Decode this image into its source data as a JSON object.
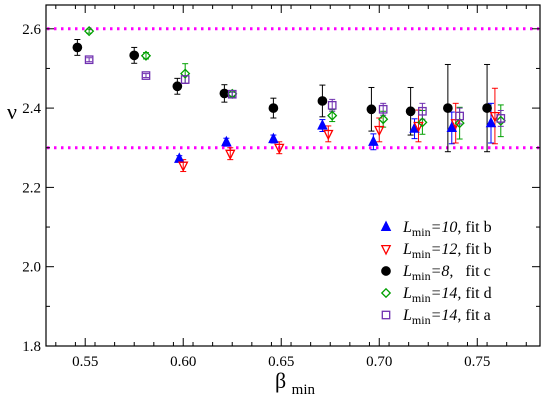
{
  "chart_data": {
    "type": "scatter",
    "xlabel": "β",
    "xlabel_sub": "min",
    "ylabel": "ν",
    "xlim": [
      0.53,
      0.782
    ],
    "ylim": [
      1.8,
      2.66
    ],
    "xticks": [
      0.55,
      0.6,
      0.65,
      0.7,
      0.75
    ],
    "xtick_labels": [
      "0.55",
      "0.60",
      "0.65",
      "0.70",
      "0.75"
    ],
    "yticks": [
      1.8,
      2.0,
      2.2,
      2.4,
      2.6
    ],
    "ytick_labels": [
      "1.8",
      "2.0",
      "2.2",
      "2.4",
      "2.6"
    ],
    "grid": false,
    "legend_position": "bottom-right",
    "reference_lines": [
      {
        "y": 2.6,
        "color": "#ff00ff",
        "style": "dotted"
      },
      {
        "y": 2.3,
        "color": "#ff00ff",
        "style": "dotted"
      }
    ],
    "series": [
      {
        "label_main": "L",
        "label_sub": "min",
        "label_value": "=10",
        "label_fit": ", fit b",
        "marker": "triangle-up",
        "color": "#0000ff",
        "filled": true,
        "points": [
          {
            "x": 0.598,
            "y": 2.272,
            "err": 0.008
          },
          {
            "x": 0.622,
            "y": 2.314,
            "err": 0.01
          },
          {
            "x": 0.646,
            "y": 2.322,
            "err": 0.01
          },
          {
            "x": 0.671,
            "y": 2.356,
            "err": 0.015
          },
          {
            "x": 0.697,
            "y": 2.315,
            "err": 0.02
          },
          {
            "x": 0.718,
            "y": 2.348,
            "err": 0.025
          },
          {
            "x": 0.737,
            "y": 2.35,
            "err": 0.04
          },
          {
            "x": 0.757,
            "y": 2.362,
            "err": 0.05
          }
        ]
      },
      {
        "label_main": "L",
        "label_sub": "min",
        "label_value": "=12",
        "label_fit": ", fit b",
        "marker": "triangle-down",
        "color": "#ff0000",
        "filled": false,
        "points": [
          {
            "x": 0.6,
            "y": 2.255,
            "err": 0.015
          },
          {
            "x": 0.624,
            "y": 2.285,
            "err": 0.015
          },
          {
            "x": 0.649,
            "y": 2.3,
            "err": 0.015
          },
          {
            "x": 0.674,
            "y": 2.335,
            "err": 0.02
          },
          {
            "x": 0.7,
            "y": 2.345,
            "err": 0.03
          },
          {
            "x": 0.72,
            "y": 2.355,
            "err": 0.04
          },
          {
            "x": 0.739,
            "y": 2.362,
            "err": 0.05
          },
          {
            "x": 0.759,
            "y": 2.38,
            "err": 0.07
          }
        ]
      },
      {
        "label_main": "L",
        "label_sub": "min",
        "label_value": "=8,",
        "label_fit": "   fit c",
        "marker": "circle",
        "color": "#000000",
        "filled": true,
        "points": [
          {
            "x": 0.546,
            "y": 2.553,
            "err": 0.02
          },
          {
            "x": 0.575,
            "y": 2.533,
            "err": 0.02
          },
          {
            "x": 0.597,
            "y": 2.455,
            "err": 0.02
          },
          {
            "x": 0.621,
            "y": 2.437,
            "err": 0.022
          },
          {
            "x": 0.646,
            "y": 2.4,
            "err": 0.025
          },
          {
            "x": 0.671,
            "y": 2.418,
            "err": 0.04
          },
          {
            "x": 0.696,
            "y": 2.397,
            "err": 0.055
          },
          {
            "x": 0.716,
            "y": 2.392,
            "err": 0.06
          },
          {
            "x": 0.735,
            "y": 2.4,
            "err": 0.11
          },
          {
            "x": 0.755,
            "y": 2.4,
            "err": 0.11
          }
        ]
      },
      {
        "label_main": "L",
        "label_sub": "min",
        "label_value": "=14,",
        "label_fit": " fit d",
        "marker": "diamond",
        "color": "#00a000",
        "filled": false,
        "points": [
          {
            "x": 0.552,
            "y": 2.594,
            "err": 0.005
          },
          {
            "x": 0.581,
            "y": 2.532,
            "err": 0.008
          },
          {
            "x": 0.601,
            "y": 2.487,
            "err": 0.025
          },
          {
            "x": 0.625,
            "y": 2.436,
            "err": 0.008
          },
          {
            "x": 0.676,
            "y": 2.381,
            "err": 0.015
          },
          {
            "x": 0.702,
            "y": 2.372,
            "err": 0.02
          },
          {
            "x": 0.722,
            "y": 2.364,
            "err": 0.03
          },
          {
            "x": 0.741,
            "y": 2.362,
            "err": 0.04
          },
          {
            "x": 0.762,
            "y": 2.368,
            "err": 0.04
          }
        ]
      },
      {
        "label_main": "L",
        "label_sub": "min",
        "label_value": "=14",
        "label_fit": ", fit a",
        "marker": "square",
        "color": "#7030b0",
        "filled": false,
        "points": [
          {
            "x": 0.552,
            "y": 2.522,
            "err": 0.005
          },
          {
            "x": 0.581,
            "y": 2.482,
            "err": 0.005
          },
          {
            "x": 0.601,
            "y": 2.472,
            "err": 0.01
          },
          {
            "x": 0.625,
            "y": 2.435,
            "err": 0.005
          },
          {
            "x": 0.676,
            "y": 2.407,
            "err": 0.015
          },
          {
            "x": 0.702,
            "y": 2.397,
            "err": 0.015
          },
          {
            "x": 0.722,
            "y": 2.392,
            "err": 0.02
          },
          {
            "x": 0.741,
            "y": 2.38,
            "err": 0.02
          },
          {
            "x": 0.762,
            "y": 2.374,
            "err": 0.02
          }
        ]
      }
    ]
  }
}
